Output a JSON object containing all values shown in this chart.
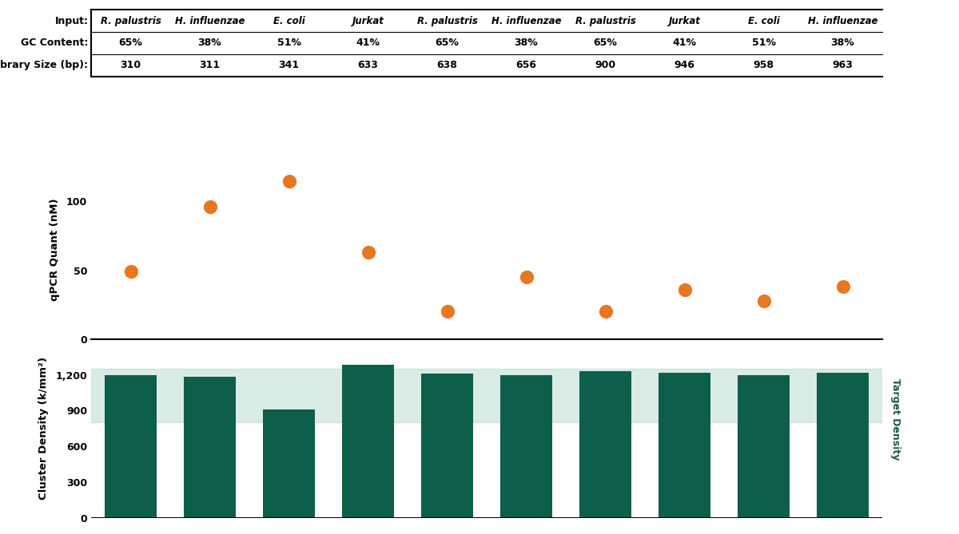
{
  "inputs": [
    "R. palustris",
    "H. influenzae",
    "E. coli",
    "Jurkat",
    "R. palustris",
    "H. influenzae",
    "R. palustris",
    "Jurkat",
    "E. coli",
    "H. influenzae"
  ],
  "gc_content": [
    "65%",
    "38%",
    "51%",
    "41%",
    "65%",
    "38%",
    "65%",
    "41%",
    "51%",
    "38%"
  ],
  "library_size": [
    "310",
    "311",
    "341",
    "633",
    "638",
    "656",
    "900",
    "946",
    "958",
    "963"
  ],
  "qpcr_values": [
    49,
    96,
    115,
    63,
    20,
    45,
    20,
    36,
    28,
    38
  ],
  "cluster_density": [
    1195,
    1185,
    910,
    1285,
    1210,
    1195,
    1230,
    1215,
    1195,
    1215
  ],
  "target_density_low": 800,
  "target_density_high": 1250,
  "bar_color": "#0D5E4B",
  "dot_color": "#E87722",
  "target_label_color": "#1A5C3A",
  "bg_color": "#FFFFFF",
  "qpcr_ylabel": "qPCR Quant (nM)",
  "cluster_ylabel": "Cluster Density (k/mm²)",
  "target_density_label": "Target Density",
  "qpcr_ylim": [
    0,
    130
  ],
  "cluster_ylim": [
    0,
    1500
  ],
  "qpcr_yticks": [
    0,
    50,
    100
  ],
  "cluster_yticks": [
    0,
    300,
    600,
    900,
    1200
  ],
  "cluster_yticklabels": [
    "0",
    "300",
    "600",
    "900",
    "1,200"
  ]
}
